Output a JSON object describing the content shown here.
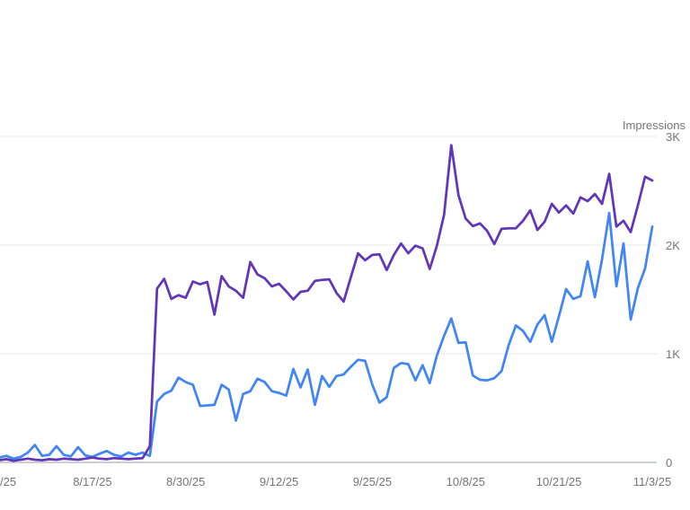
{
  "page": {
    "background_color": "#ffffff"
  },
  "chart_data": {
    "type": "line",
    "title": "",
    "y_axis_label": "Impressions",
    "y_tick_labels": [
      "3K",
      "2K",
      "1K",
      "0"
    ],
    "y_tick_values": [
      3000,
      2000,
      1000,
      0
    ],
    "ylim": [
      0,
      3000
    ],
    "x_tick_labels": [
      "/25",
      "8/17/25",
      "8/30/25",
      "9/12/25",
      "9/25/25",
      "10/8/25",
      "10/21/25",
      "11/3/25"
    ],
    "x_tick_day_indices": [
      0,
      13,
      26,
      39,
      52,
      65,
      78,
      91
    ],
    "x_range_days": 92,
    "grid": true,
    "legend_position": "none",
    "gridline_color": "#e9eaec",
    "axis_color": "#9aa0a6",
    "label_color": "#757575",
    "series": [
      {
        "name": "impressions-blue",
        "color": "#4285f4",
        "values": [
          45,
          60,
          35,
          50,
          90,
          160,
          60,
          70,
          150,
          70,
          55,
          140,
          65,
          50,
          80,
          105,
          70,
          55,
          90,
          70,
          90,
          60,
          560,
          630,
          660,
          780,
          740,
          715,
          520,
          525,
          530,
          715,
          670,
          385,
          630,
          655,
          770,
          740,
          655,
          640,
          615,
          860,
          690,
          855,
          530,
          795,
          695,
          795,
          810,
          880,
          945,
          935,
          715,
          550,
          600,
          870,
          915,
          905,
          755,
          895,
          730,
          985,
          1165,
          1325,
          1100,
          1105,
          800,
          760,
          755,
          775,
          840,
          1080,
          1260,
          1210,
          1110,
          1270,
          1355,
          1110,
          1345,
          1595,
          1505,
          1530,
          1850,
          1520,
          1870,
          2295,
          1620,
          2015,
          1315,
          1605,
          1785,
          2170
        ]
      },
      {
        "name": "impressions-purple",
        "color": "#6236b8",
        "values": [
          20,
          30,
          15,
          25,
          35,
          25,
          20,
          30,
          25,
          35,
          30,
          25,
          35,
          45,
          35,
          30,
          40,
          35,
          30,
          35,
          40,
          150,
          1600,
          1690,
          1505,
          1540,
          1515,
          1665,
          1640,
          1660,
          1360,
          1715,
          1620,
          1580,
          1515,
          1845,
          1730,
          1695,
          1620,
          1645,
          1575,
          1500,
          1570,
          1580,
          1670,
          1680,
          1685,
          1560,
          1480,
          1705,
          1925,
          1860,
          1910,
          1915,
          1770,
          1910,
          2015,
          1925,
          1995,
          1970,
          1780,
          1995,
          2280,
          2920,
          2460,
          2245,
          2175,
          2200,
          2130,
          2010,
          2150,
          2155,
          2155,
          2225,
          2320,
          2140,
          2215,
          2380,
          2300,
          2365,
          2290,
          2440,
          2405,
          2470,
          2380,
          2655,
          2170,
          2225,
          2120,
          2365,
          2630,
          2595
        ]
      }
    ]
  }
}
